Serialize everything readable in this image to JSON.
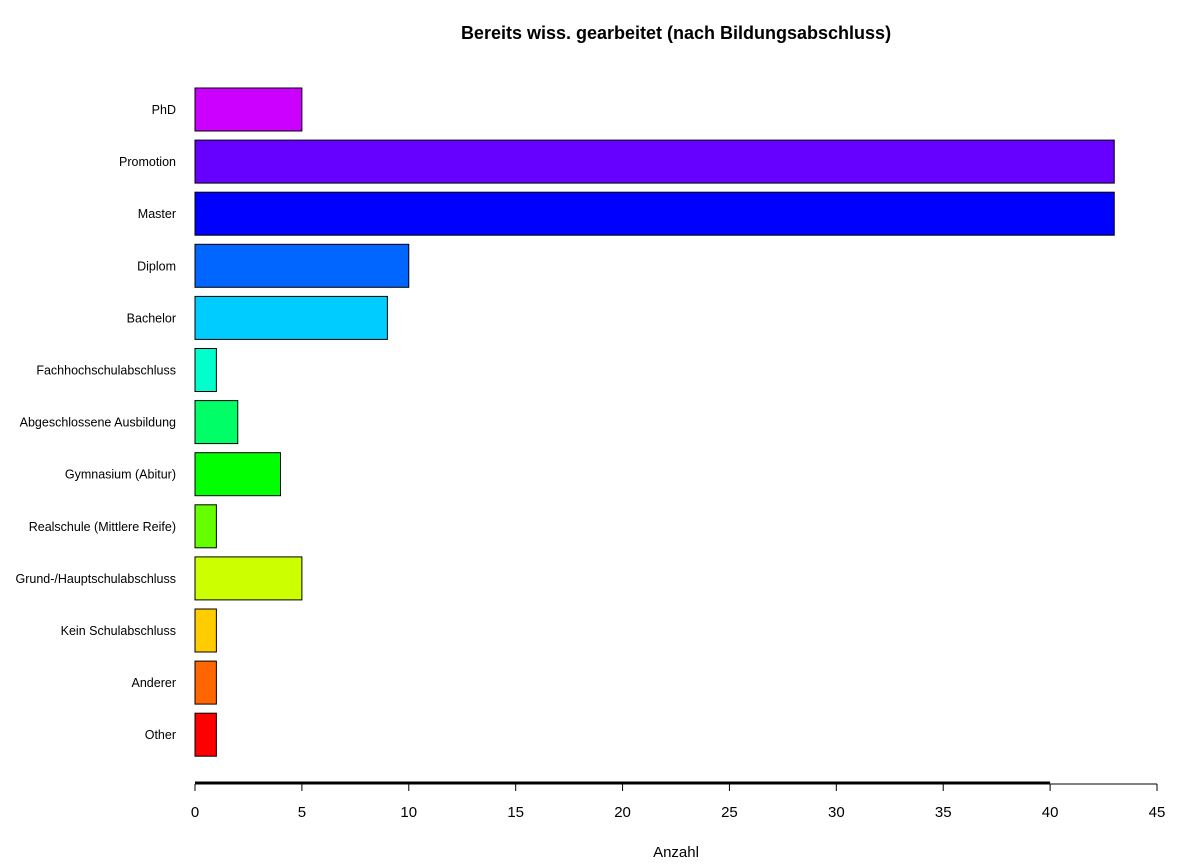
{
  "chart_data": {
    "type": "bar",
    "orientation": "horizontal",
    "title": "Bereits wiss. gearbeitet (nach Bildungsabschluss)",
    "xlabel": "Anzahl",
    "ylabel": "",
    "xlim": [
      0,
      45
    ],
    "x_ticks": [
      0,
      5,
      10,
      15,
      20,
      25,
      30,
      35,
      40,
      45
    ],
    "grid": false,
    "legend": "none",
    "categories": [
      "PhD",
      "Promotion",
      "Master",
      "Diplom",
      "Bachelor",
      "Fachhochschulabschluss",
      "Abgeschlossene Ausbildung",
      "Gymnasium (Abitur)",
      "Realschule (Mittlere Reife)",
      "Grund-/Hauptschulabschluss",
      "Kein Schulabschluss",
      "Anderer",
      "Other"
    ],
    "values": [
      5,
      43,
      43,
      10,
      9,
      1,
      2,
      4,
      1,
      5,
      1,
      1,
      1
    ],
    "colors": [
      "#CC00FF",
      "#6600FF",
      "#0000FF",
      "#0066FF",
      "#00CCFF",
      "#00FFCC",
      "#00FF66",
      "#00FF00",
      "#66FF00",
      "#CCFF00",
      "#FFCC00",
      "#FF6600",
      "#FF0000"
    ]
  }
}
